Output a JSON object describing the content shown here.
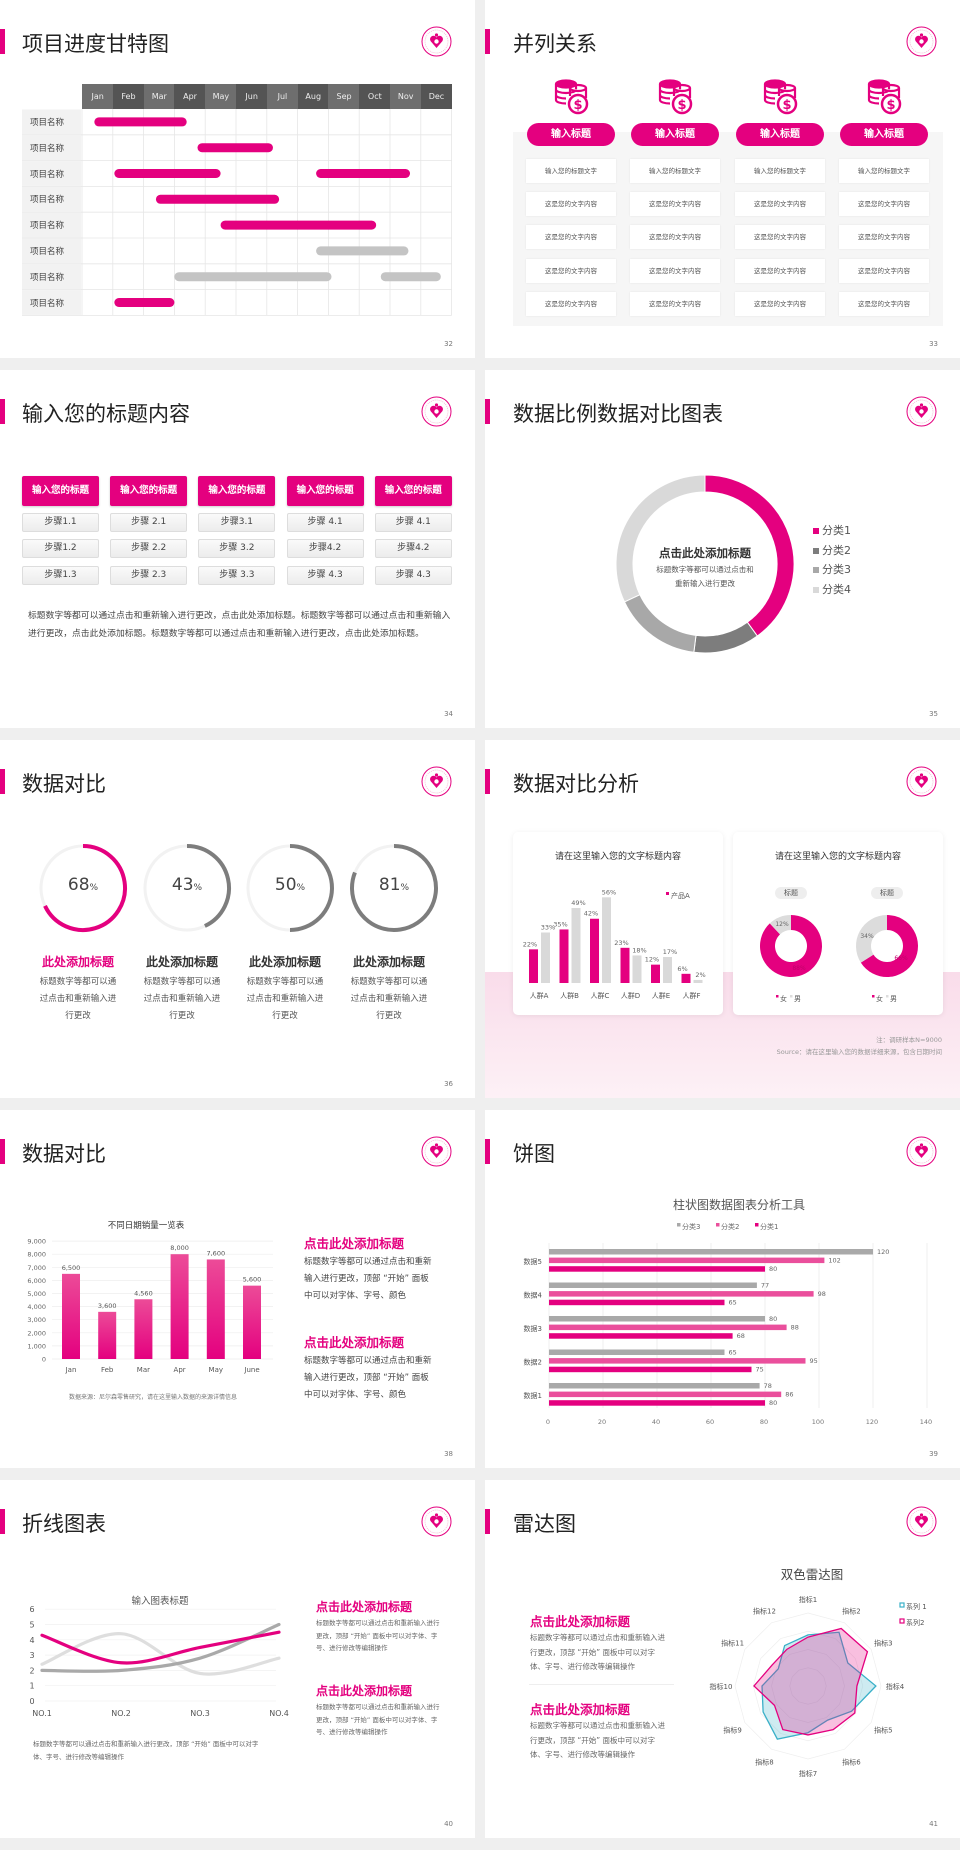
{
  "colors": {
    "accent": "#e4007f",
    "accent_light": "#ea4f9c",
    "gray_dark": "#7a7a7a",
    "gray_mid": "#a9a9a9",
    "gray_light": "#d9d9d9",
    "cyan": "#3ab0c8"
  },
  "logo_icon": "heart-seal-logo",
  "slides": [
    {
      "title": "项目进度甘特图",
      "page": "32",
      "months": [
        "Jan",
        "Feb",
        "Mar",
        "Apr",
        "May",
        "Jun",
        "Jul",
        "Aug",
        "Sep",
        "Oct",
        "Nov",
        "Dec"
      ],
      "rows": [
        {
          "label": "项目名称",
          "bars": [
            {
              "start": 0.4,
              "end": 3.4,
              "color": "pink"
            }
          ]
        },
        {
          "label": "项目名称",
          "bars": [
            {
              "start": 3.75,
              "end": 6.2,
              "color": "pink"
            }
          ]
        },
        {
          "label": "项目名称",
          "bars": [
            {
              "start": 1.05,
              "end": 4.5,
              "color": "pink"
            },
            {
              "start": 7.6,
              "end": 10.65,
              "color": "pink"
            }
          ]
        },
        {
          "label": "项目名称",
          "bars": [
            {
              "start": 2.4,
              "end": 6.4,
              "color": "pink"
            }
          ]
        },
        {
          "label": "项目名称",
          "bars": [
            {
              "start": 4.5,
              "end": 9.55,
              "color": "pink"
            }
          ]
        },
        {
          "label": "项目名称",
          "bars": [
            {
              "start": 7.6,
              "end": 10.6,
              "color": "gray"
            }
          ]
        },
        {
          "label": "项目名称",
          "bars": [
            {
              "start": 3.0,
              "end": 8.1,
              "color": "gray"
            },
            {
              "start": 9.7,
              "end": 11.65,
              "color": "gray"
            }
          ]
        },
        {
          "label": "项目名称",
          "bars": [
            {
              "start": 1.05,
              "end": 3.0,
              "color": "pink"
            }
          ]
        }
      ]
    },
    {
      "title": "并列关系",
      "page": "33",
      "icon": "coins-dollar-icon",
      "columns": [
        {
          "heading": "输入标题",
          "cells": [
            "输入您的标题文字",
            "这是您的文字内容",
            "这是您的文字内容",
            "这是您的文字内容",
            "这是您的文字内容"
          ]
        },
        {
          "heading": "输入标题",
          "cells": [
            "输入您的标题文字",
            "这是您的文字内容",
            "这是您的文字内容",
            "这是您的文字内容",
            "这是您的文字内容"
          ]
        },
        {
          "heading": "输入标题",
          "cells": [
            "输入您的标题文字",
            "这是您的文字内容",
            "这是您的文字内容",
            "这是您的文字内容",
            "这是您的文字内容"
          ]
        },
        {
          "heading": "输入标题",
          "cells": [
            "输入您的标题文字",
            "这是您的文字内容",
            "这是您的文字内容",
            "这是您的文字内容",
            "这是您的文字内容"
          ]
        }
      ]
    },
    {
      "title": "输入您的标题内容",
      "page": "34",
      "columns": [
        {
          "heading": "输入您的标题",
          "steps": [
            "步骤1.1",
            "步骤1.2",
            "步骤1.3"
          ]
        },
        {
          "heading": "输入您的标题",
          "steps": [
            "步骤 2.1",
            "步骤 2.2",
            "步骤 2.3"
          ]
        },
        {
          "heading": "输入您的标题",
          "steps": [
            "步骤3.1",
            "步骤 3.2",
            "步骤 3.3"
          ]
        },
        {
          "heading": "输入您的标题",
          "steps": [
            "步骤 4.1",
            "步骤4.2",
            "步骤 4.3"
          ]
        },
        {
          "heading": "输入您的标题",
          "steps": [
            "步骤 4.1",
            "步骤4.2",
            "步骤 4.3"
          ]
        }
      ],
      "paragraph": "标题数字等都可以通过点击和重新输入进行更改，点击此处添加标题。标题数字等都可以通过点击和重新输入进行更改，点击此处添加标题。标题数字等都可以通过点击和重新输入进行更改，点击此处添加标题。"
    },
    {
      "title": "数据比例数据对比图表",
      "page": "35",
      "center_title": "点击此处添加标题",
      "center_text": [
        "标题数字等都可以通过点击和",
        "重新输入进行更改"
      ]
    },
    {
      "title": "数据对比",
      "page": "36",
      "items": [
        {
          "percent": 68,
          "value": "68",
          "unit": "%",
          "heading": "此处添加标题",
          "text": [
            "标题数字等都可以通",
            "过点击和重新输入进",
            "行更改"
          ],
          "highlight": true
        },
        {
          "percent": 43,
          "value": "43",
          "unit": "%",
          "heading": "此处添加标题",
          "text": [
            "标题数字等都可以通",
            "过点击和重新输入进",
            "行更改"
          ],
          "highlight": false
        },
        {
          "percent": 50,
          "value": "50",
          "unit": "%",
          "heading": "此处添加标题",
          "text": [
            "标题数字等都可以通",
            "过点击和重新输入进",
            "行更改"
          ],
          "highlight": false
        },
        {
          "percent": 81,
          "value": "81",
          "unit": "%",
          "heading": "此处添加标题",
          "text": [
            "标题数字等都可以通",
            "过点击和重新输入进",
            "行更改"
          ],
          "highlight": false
        }
      ]
    },
    {
      "title": "数据对比分析",
      "page": "37",
      "note": "注：调研样本N=9000",
      "source": "Source：请在这里输入您的数据详细来源，包含日期时间"
    },
    {
      "title": "数据对比",
      "page": "38",
      "blocks": [
        {
          "heading": "点击此处添加标题",
          "text": [
            "标题数字等都可以通过点击和重新",
            "输入进行更改，顶部 “开始” 面板",
            "中可以对字体、字号、颜色"
          ]
        },
        {
          "heading": "点击此处添加标题",
          "text": [
            "标题数字等都可以通过点击和重新",
            "输入进行更改，顶部 “开始” 面板",
            "中可以对字体、字号、颜色"
          ]
        }
      ]
    },
    {
      "title": "饼图",
      "page": "39"
    },
    {
      "title": "折线图表",
      "page": "40",
      "below_text": [
        "标题数字等都可以通过点击和重新输入进行更改，顶部 “开始” 面板中可以对字",
        "体、字号、进行修改等编辑操作"
      ],
      "blocks": [
        {
          "heading": "点击此处添加标题",
          "text": [
            "标题数字等都可以通过点击和重新输入进行",
            "更改，顶部 “开始” 面板中可以对字体、字",
            "号、进行修改等编辑操作"
          ]
        },
        {
          "heading": "点击此处添加标题",
          "text": [
            "标题数字等都可以通过点击和重新输入进行",
            "更改，顶部 “开始” 面板中可以对字体、字",
            "号、进行修改等编辑操作"
          ]
        }
      ]
    },
    {
      "title": "雷达图",
      "page": "41",
      "blocks": [
        {
          "heading": "点击此处添加标题",
          "text": [
            "标题数字等都可以通过点击和重新输入进",
            "行更改，顶部 “开始” 面板中可以对字",
            "体、字号、进行修改等编辑操作"
          ]
        },
        {
          "heading": "点击此处添加标题",
          "text": [
            "标题数字等都可以通过点击和重新输入进",
            "行更改，顶部 “开始” 面板中可以对字",
            "体、字号、进行修改等编辑操作"
          ]
        }
      ]
    }
  ],
  "chart_data": [
    {
      "id": "donut-categories",
      "type": "pie",
      "categories": [
        "分类1",
        "分类2",
        "分类3",
        "分类4"
      ],
      "values": [
        40,
        12,
        16,
        32
      ],
      "legend": "right"
    },
    {
      "id": "crowd-bars",
      "type": "bar",
      "title": "请在这里输入您的文字标题内容",
      "categories": [
        "人群A",
        "人群B",
        "人群C",
        "人群D",
        "人群E",
        "人群F"
      ],
      "series": [
        {
          "name": "产品A",
          "values": [
            22,
            35,
            42,
            23,
            12,
            6
          ]
        },
        {
          "values": [
            33,
            49,
            56,
            18,
            17,
            2
          ]
        }
      ],
      "labels": [
        [
          "22%",
          "35%",
          "42%",
          "23%",
          "12%",
          "6%"
        ],
        [
          "33%",
          "49%",
          "56%",
          "18%",
          "17%",
          "2%"
        ]
      ],
      "legend": "top-right"
    },
    {
      "id": "gender-donuts",
      "type": "pie",
      "title": "请在这里输入您的文字标题内容",
      "charts": [
        {
          "label": "标题",
          "categories": [
            "女",
            "男"
          ],
          "values": [
            88,
            12
          ],
          "labels": [
            "88%",
            "12%"
          ]
        },
        {
          "label": "标题",
          "categories": [
            "女",
            "男"
          ],
          "values": [
            66,
            34
          ],
          "labels": [
            "66%",
            "34%"
          ]
        }
      ],
      "legend": "bottom"
    },
    {
      "id": "monthly-sales",
      "type": "bar",
      "title": "不同日期销量一览表",
      "categories": [
        "Jan",
        "Feb",
        "Mar",
        "Apr",
        "May",
        "June"
      ],
      "values": [
        6500,
        3600,
        4560,
        8000,
        7600,
        5600
      ],
      "labels": [
        "6,500",
        "3,600",
        "4,560",
        "8,000",
        "7,600",
        "5,600"
      ],
      "ylim": [
        0,
        9000
      ],
      "yticks": [
        "0",
        "1,000",
        "2,000",
        "3,000",
        "4,000",
        "5,000",
        "6,000",
        "7,000",
        "8,000",
        "9,000"
      ],
      "grid": true,
      "source": "数据来源：尼尔森零售研究，请在这里输入数据的来源详情信息"
    },
    {
      "id": "hbar-tool",
      "type": "bar",
      "orientation": "horizontal",
      "title": "柱状图数据图表分析工具",
      "categories": [
        "数据1",
        "数据2",
        "数据3",
        "数据4",
        "数据5"
      ],
      "series": [
        {
          "name": "分类3",
          "values": [
            78,
            65,
            80,
            77,
            120
          ]
        },
        {
          "name": "分类2",
          "values": [
            86,
            95,
            88,
            98,
            102
          ]
        },
        {
          "name": "分类1",
          "values": [
            80,
            75,
            68,
            65,
            80
          ]
        }
      ],
      "xlim": [
        0,
        140
      ],
      "xticks": [
        "0",
        "20",
        "40",
        "60",
        "80",
        "100",
        "120",
        "140"
      ],
      "legend": "top",
      "grid": true
    },
    {
      "id": "line-chart",
      "type": "line",
      "title": "输入图表标题",
      "categories": [
        "NO.1",
        "NO.2",
        "NO.3",
        "NO.4"
      ],
      "series": [
        {
          "values": [
            4.3,
            2.5,
            3.5,
            4.5
          ]
        },
        {
          "values": [
            2.4,
            4.4,
            1.8,
            2.8
          ]
        },
        {
          "values": [
            2.0,
            2.0,
            2.8,
            5.0
          ]
        }
      ],
      "ylim": [
        0,
        6
      ],
      "yticks": [
        "0",
        "1",
        "2",
        "3",
        "4",
        "5",
        "6"
      ],
      "smooth": true
    },
    {
      "id": "radar",
      "type": "radar",
      "title": "双色雷达图",
      "categories": [
        "指标1",
        "指标2",
        "指标3",
        "指标4",
        "指标5",
        "指标6",
        "指标7",
        "指标8",
        "指标9",
        "指标10",
        "指标11",
        "指标12"
      ],
      "series": [
        {
          "name": "系列 1",
          "values": [
            70,
            85,
            63,
            93,
            69,
            54,
            64,
            84,
            71,
            63,
            47,
            64
          ]
        },
        {
          "name": "系列2",
          "values": [
            67,
            91,
            94,
            67,
            74,
            69,
            67,
            69,
            53,
            74,
            57,
            58
          ]
        }
      ],
      "rlim": [
        0,
        100
      ],
      "legend": "top-right"
    }
  ]
}
